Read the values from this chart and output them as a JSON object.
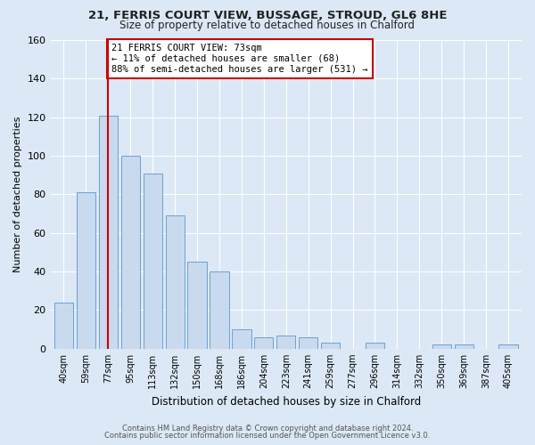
{
  "title1": "21, FERRIS COURT VIEW, BUSSAGE, STROUD, GL6 8HE",
  "title2": "Size of property relative to detached houses in Chalford",
  "xlabel": "Distribution of detached houses by size in Chalford",
  "ylabel": "Number of detached properties",
  "bar_labels": [
    "40sqm",
    "59sqm",
    "77sqm",
    "95sqm",
    "113sqm",
    "132sqm",
    "150sqm",
    "168sqm",
    "186sqm",
    "204sqm",
    "223sqm",
    "241sqm",
    "259sqm",
    "277sqm",
    "296sqm",
    "314sqm",
    "332sqm",
    "350sqm",
    "369sqm",
    "387sqm",
    "405sqm"
  ],
  "bar_values": [
    24,
    81,
    121,
    100,
    91,
    69,
    45,
    40,
    10,
    6,
    7,
    6,
    3,
    0,
    3,
    0,
    0,
    2,
    2,
    0,
    2
  ],
  "bar_color": "#c9d9ee",
  "bar_edge_color": "#6ba3d0",
  "vline_x": 2,
  "vline_color": "#cc0000",
  "annotation_text": "21 FERRIS COURT VIEW: 73sqm\n← 11% of detached houses are smaller (68)\n88% of semi-detached houses are larger (531) →",
  "annotation_box_color": "#ffffff",
  "annotation_box_edge_color": "#cc0000",
  "ylim": [
    0,
    160
  ],
  "yticks": [
    0,
    20,
    40,
    60,
    80,
    100,
    120,
    140,
    160
  ],
  "bg_color": "#dce8f5",
  "footer1": "Contains HM Land Registry data © Crown copyright and database right 2024.",
  "footer2": "Contains public sector information licensed under the Open Government Licence v3.0."
}
